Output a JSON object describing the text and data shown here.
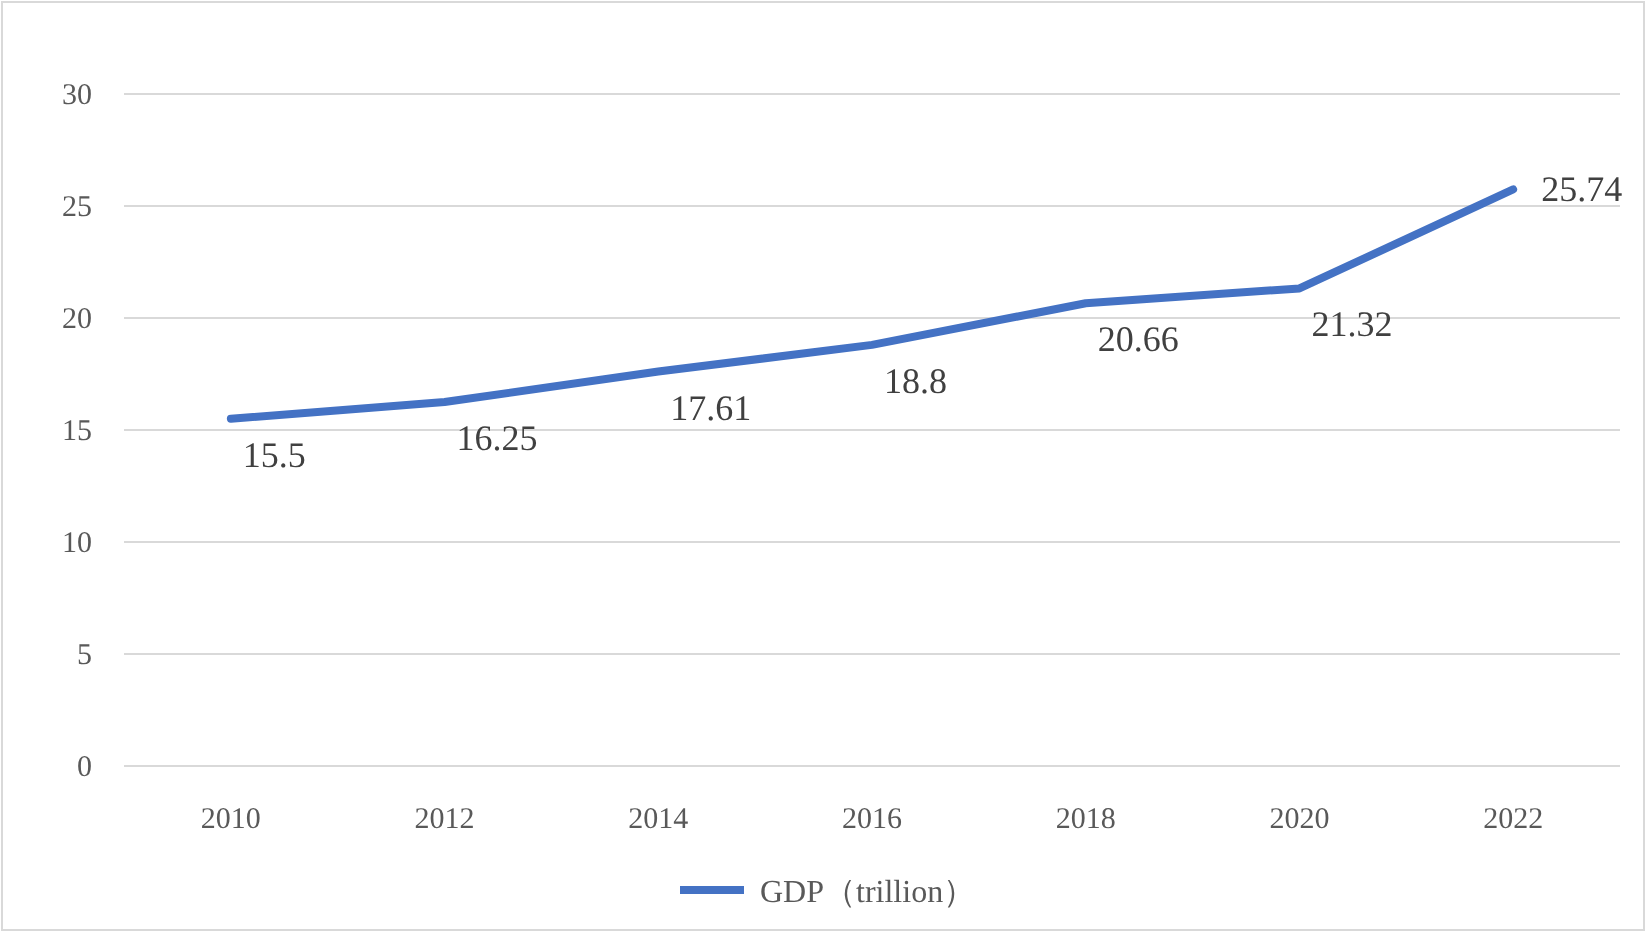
{
  "chart_data": {
    "type": "line",
    "categories": [
      "2010",
      "2012",
      "2014",
      "2016",
      "2018",
      "2020",
      "2022"
    ],
    "series": [
      {
        "name": "GDP（trillion）",
        "color": "#4472c4",
        "values": [
          15.5,
          16.25,
          17.61,
          18.8,
          20.66,
          21.32,
          25.74
        ]
      }
    ],
    "ylim": [
      0,
      30
    ],
    "yticks": [
      0,
      5,
      10,
      15,
      20,
      25,
      30
    ],
    "grid": "y",
    "legend": "bottom",
    "data_labels": true,
    "marker": "none",
    "line_style": "solid"
  }
}
